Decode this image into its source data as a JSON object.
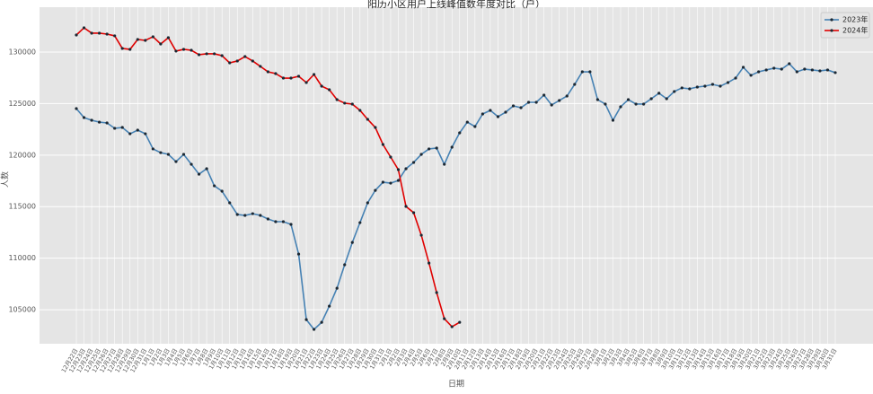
{
  "chart_data": {
    "type": "line",
    "title": "阳历小区用户上线峰值数年度对比（户）",
    "x_label": "日期",
    "y_label": "人数",
    "categories": [
      "12月22日",
      "12月23日",
      "12月24日",
      "12月25日",
      "12月26日",
      "12月27日",
      "12月28日",
      "12月29日",
      "12月30日",
      "12月31日",
      "1月1日",
      "1月2日",
      "1月3日",
      "1月4日",
      "1月5日",
      "1月6日",
      "1月7日",
      "1月8日",
      "1月9日",
      "1月10日",
      "1月11日",
      "1月12日",
      "1月13日",
      "1月14日",
      "1月15日",
      "1月16日",
      "1月17日",
      "1月18日",
      "1月19日",
      "1月20日",
      "1月21日",
      "1月22日",
      "1月23日",
      "1月24日",
      "1月25日",
      "1月26日",
      "1月27日",
      "1月28日",
      "1月29日",
      "1月30日",
      "1月31日",
      "2月1日",
      "2月2日",
      "2月3日",
      "2月4日",
      "2月5日",
      "2月6日",
      "2月7日",
      "2月8日",
      "2月9日",
      "2月10日",
      "2月11日",
      "2月12日",
      "2月13日",
      "2月14日",
      "2月15日",
      "2月16日",
      "2月17日",
      "2月18日",
      "2月19日",
      "2月20日",
      "2月21日",
      "2月22日",
      "2月23日",
      "2月24日",
      "2月25日",
      "2月26日",
      "2月27日",
      "2月28日",
      "3月1日",
      "3月2日",
      "3月3日",
      "3月4日",
      "3月5日",
      "3月6日",
      "3月7日",
      "3月8日",
      "3月9日",
      "3月10日",
      "3月11日",
      "3月12日",
      "3月13日",
      "3月14日",
      "3月15日",
      "3月16日",
      "3月17日",
      "3月18日",
      "3月19日",
      "3月20日",
      "3月21日",
      "3月22日",
      "3月23日",
      "3月24日",
      "3月25日",
      "3月26日",
      "3月27日",
      "3月28日",
      "3月29日",
      "3月30日",
      "3月31日"
    ],
    "series": [
      {
        "name": "2023年",
        "color": "#4682b4",
        "values": [
          124510,
          123640,
          123380,
          123200,
          123120,
          122600,
          122680,
          122070,
          122420,
          122070,
          120600,
          120240,
          120070,
          119370,
          120070,
          119110,
          118150,
          118680,
          117020,
          116500,
          115370,
          114240,
          114150,
          114320,
          114150,
          113800,
          113540,
          113540,
          113280,
          110400,
          104040,
          103090,
          103780,
          105350,
          107090,
          109360,
          111530,
          113450,
          115370,
          116580,
          117370,
          117280,
          117540,
          118680,
          119290,
          120070,
          120600,
          120680,
          119110,
          120770,
          122160,
          123200,
          122770,
          123990,
          124340,
          123730,
          124160,
          124770,
          124600,
          125120,
          125120,
          125820,
          124860,
          125300,
          125730,
          126860,
          128080,
          128080,
          125380,
          124950,
          123380,
          124690,
          125380,
          124950,
          124950,
          125470,
          126000,
          125470,
          126170,
          126520,
          126430,
          126600,
          126690,
          126860,
          126690,
          127040,
          127470,
          128520,
          127740,
          128080,
          128260,
          128430,
          128340,
          128870,
          128080,
          128340,
          128260,
          128170,
          128260,
          128000
        ]
      },
      {
        "name": "2024年",
        "color": "#e00000",
        "values": [
          131650,
          132350,
          131830,
          131830,
          131740,
          131570,
          130350,
          130260,
          131220,
          131130,
          131480,
          130780,
          131390,
          130090,
          130260,
          130170,
          129740,
          129830,
          129830,
          129650,
          128950,
          129130,
          129560,
          129130,
          128610,
          128080,
          127910,
          127470,
          127470,
          127650,
          127040,
          127820,
          126690,
          126340,
          125380,
          125040,
          124950,
          124340,
          123470,
          122680,
          121030,
          119810,
          118590,
          115020,
          114410,
          112230,
          109530,
          106660,
          104130,
          103350,
          103780,
          null,
          null,
          null,
          null,
          null,
          null,
          null,
          null,
          null,
          null,
          null,
          null,
          null,
          null,
          null,
          null,
          null,
          null,
          null,
          null,
          null,
          null,
          null,
          null,
          null,
          null,
          null,
          null,
          null,
          null,
          null,
          null,
          null,
          null,
          null,
          null,
          null,
          null,
          null,
          null,
          null,
          null,
          null,
          null,
          null,
          null,
          null,
          null,
          null
        ]
      }
    ],
    "ylim": [
      101700,
      134350
    ],
    "yticks": [
      105000,
      110000,
      115000,
      120000,
      125000,
      130000
    ],
    "grid": true,
    "legend": "upper right",
    "marker_color": "#1c2833"
  }
}
